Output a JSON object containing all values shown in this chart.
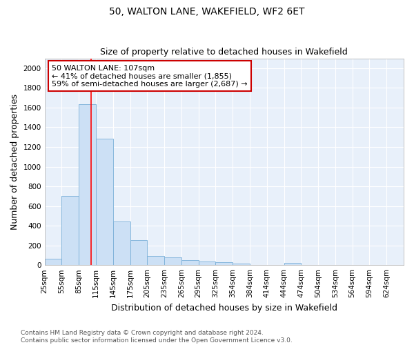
{
  "title": "50, WALTON LANE, WAKEFIELD, WF2 6ET",
  "subtitle": "Size of property relative to detached houses in Wakefield",
  "xlabel": "Distribution of detached houses by size in Wakefield",
  "ylabel": "Number of detached properties",
  "bar_color": "#cce0f5",
  "bar_edge_color": "#7ab0d8",
  "bg_color": "#e8f0fa",
  "grid_color": "#ffffff",
  "categories": [
    "25sqm",
    "55sqm",
    "85sqm",
    "115sqm",
    "145sqm",
    "175sqm",
    "205sqm",
    "235sqm",
    "265sqm",
    "295sqm",
    "325sqm",
    "354sqm",
    "384sqm",
    "414sqm",
    "444sqm",
    "474sqm",
    "504sqm",
    "534sqm",
    "564sqm",
    "594sqm",
    "624sqm"
  ],
  "values": [
    65,
    700,
    1635,
    1285,
    440,
    255,
    90,
    80,
    50,
    35,
    30,
    18,
    0,
    0,
    20,
    0,
    0,
    0,
    0,
    0,
    0
  ],
  "red_line_x": 2,
  "annotation_text": "50 WALTON LANE: 107sqm\n← 41% of detached houses are smaller (1,855)\n59% of semi-detached houses are larger (2,687) →",
  "annotation_box_color": "#ffffff",
  "annotation_box_edge": "#cc0000",
  "ylim": [
    0,
    2100
  ],
  "yticks": [
    0,
    200,
    400,
    600,
    800,
    1000,
    1200,
    1400,
    1600,
    1800,
    2000
  ],
  "footnote": "Contains HM Land Registry data © Crown copyright and database right 2024.\nContains public sector information licensed under the Open Government Licence v3.0.",
  "title_fontsize": 10,
  "subtitle_fontsize": 9,
  "label_fontsize": 9,
  "tick_fontsize": 7.5,
  "footnote_fontsize": 6.5,
  "annotation_fontsize": 8
}
